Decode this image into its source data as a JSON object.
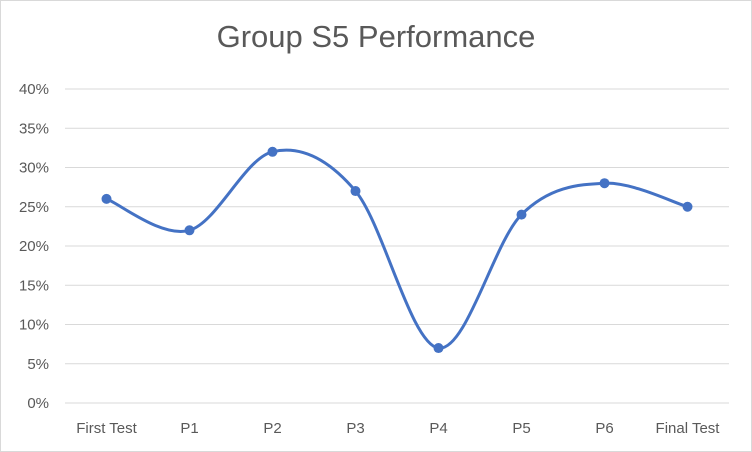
{
  "chart_data": {
    "type": "line",
    "title": "Group S5 Performance",
    "categories": [
      "First Test",
      "P1",
      "P2",
      "P3",
      "P4",
      "P5",
      "P6",
      "Final Test"
    ],
    "values": [
      26,
      22,
      32,
      27,
      7,
      24,
      28,
      25
    ],
    "value_unit": "%",
    "xlabel": "",
    "ylabel": "",
    "ylim": [
      0,
      40
    ],
    "yticks": [
      "0%",
      "5%",
      "10%",
      "15%",
      "20%",
      "25%",
      "30%",
      "35%",
      "40%"
    ],
    "smooth": true,
    "markers": true,
    "grid": true,
    "legend": "none",
    "colors": {
      "series": "#4472C4",
      "grid": "#d9d9d9",
      "text": "#595959"
    }
  }
}
